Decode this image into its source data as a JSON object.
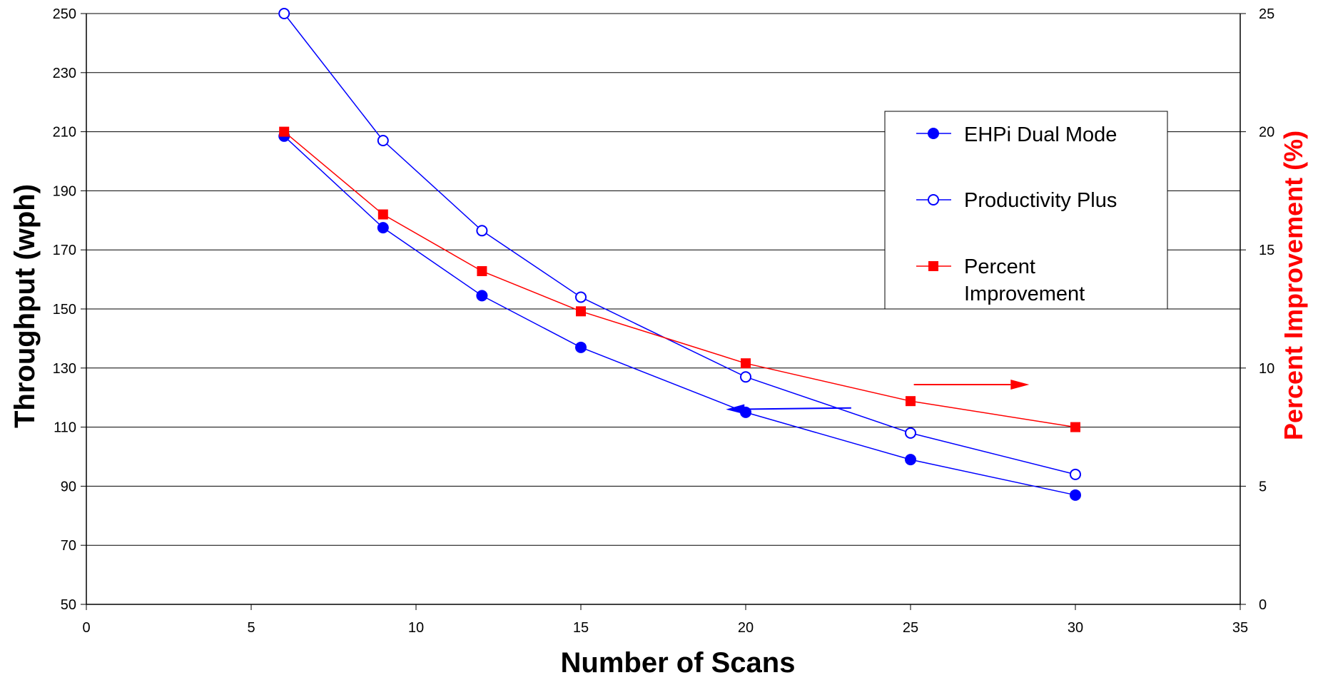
{
  "chart_data": {
    "type": "line",
    "xlabel": "Number of Scans",
    "ylabel": "Throughput (wph)",
    "y2label": "Percent Improvement (%)",
    "xlim": [
      0,
      35
    ],
    "ylim": [
      50,
      250
    ],
    "y2lim": [
      0,
      25
    ],
    "x_ticks": [
      0,
      5,
      10,
      15,
      20,
      25,
      30,
      35
    ],
    "y_ticks": [
      50,
      70,
      90,
      110,
      130,
      150,
      170,
      190,
      210,
      230,
      250
    ],
    "y2_ticks": [
      0,
      5,
      10,
      15,
      20,
      25
    ],
    "grid": "horizontal",
    "legend_position": "top-right",
    "series": [
      {
        "name": "EHPi Dual Mode",
        "axis": "left",
        "color": "#0000ff",
        "marker": "filled-circle",
        "x": [
          6,
          9,
          12,
          15,
          20,
          25,
          30
        ],
        "y": [
          208.5,
          177.5,
          154.5,
          137,
          115,
          99,
          87
        ]
      },
      {
        "name": "Productivity Plus",
        "axis": "left",
        "color": "#0000ff",
        "marker": "open-circle",
        "x": [
          6,
          9,
          12,
          15,
          20,
          25,
          30
        ],
        "y": [
          250,
          207,
          176.5,
          154,
          127,
          108,
          94
        ]
      },
      {
        "name": "Percent Improvement",
        "axis": "right",
        "color": "#ff0000",
        "marker": "filled-square",
        "x": [
          6,
          9,
          12,
          15,
          20,
          25,
          30
        ],
        "y": [
          20,
          16.5,
          14.1,
          12.4,
          10.2,
          8.6,
          7.5
        ]
      }
    ],
    "annotations": [
      {
        "type": "arrow",
        "direction": "right",
        "color": "#ff0000",
        "from": [
          25.1,
          9.3
        ],
        "to": [
          28.6,
          9.3
        ],
        "axis": "right"
      },
      {
        "type": "arrow",
        "direction": "left",
        "color": "#0000ff",
        "from": [
          23.2,
          116.5
        ],
        "to": [
          19.4,
          116
        ],
        "axis": "left"
      }
    ]
  }
}
